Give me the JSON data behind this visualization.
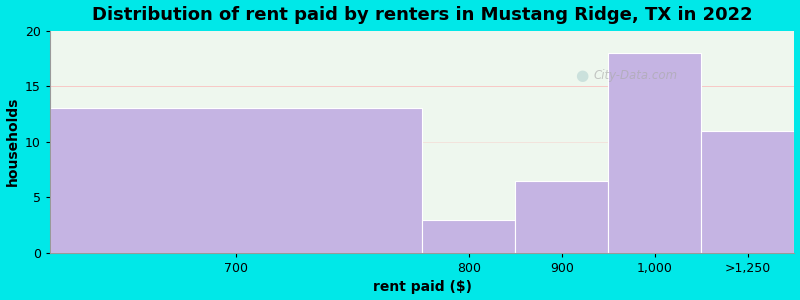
{
  "categories": [
    "700",
    "800",
    "900",
    "1,000",
    ">1,250"
  ],
  "values": [
    13,
    3,
    6.5,
    18,
    11
  ],
  "bar_color": "#c5b4e3",
  "title": "Distribution of rent paid by renters in Mustang Ridge, TX in 2022",
  "xlabel": "rent paid ($)",
  "ylabel": "households",
  "ylim": [
    0,
    20
  ],
  "yticks": [
    0,
    5,
    10,
    15,
    20
  ],
  "title_fontsize": 13,
  "axis_label_fontsize": 10,
  "tick_fontsize": 9,
  "background_color": "#00e8e8",
  "plot_bg_color": "#eef7ee",
  "watermark": "City-Data.com",
  "bar_left_edges": [
    0,
    4,
    5,
    6,
    7
  ],
  "bar_right_edges": [
    4,
    5,
    6,
    7,
    8
  ],
  "xlim": [
    0,
    8
  ]
}
